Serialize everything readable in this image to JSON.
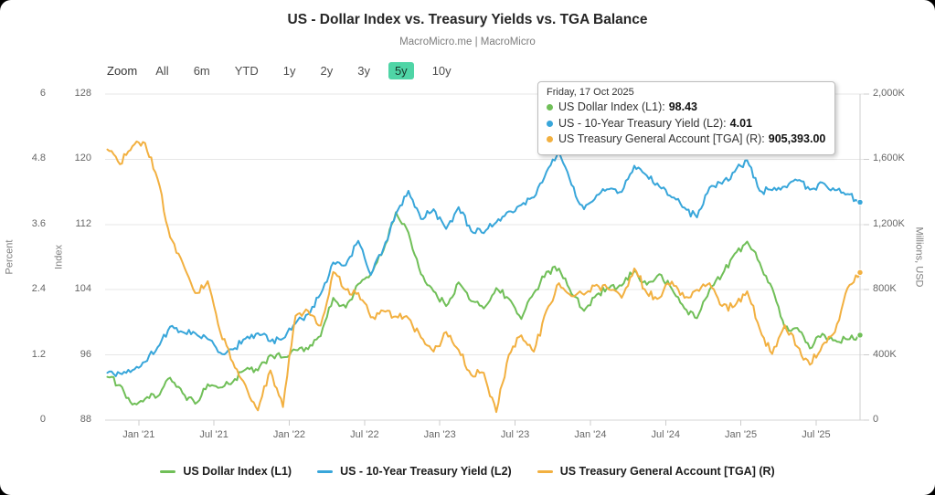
{
  "header": {
    "title": "US - Dollar Index vs. Treasury Yields vs. TGA Balance",
    "subtitle": "MacroMicro.me | MacroMicro"
  },
  "toolbar": {
    "label": "Zoom",
    "buttons": [
      "All",
      "6m",
      "YTD",
      "1y",
      "2y",
      "3y",
      "5y",
      "10y"
    ],
    "active": "5y",
    "active_bg": "#4fd5a6"
  },
  "tooltip": {
    "date": "Friday, 17 Oct 2025",
    "rows": [
      {
        "label": "US Dollar Index (L1):",
        "value": "98.43",
        "color": "#70bf58"
      },
      {
        "label": "US - 10-Year Treasury Yield (L2):",
        "value": "4.01",
        "color": "#38a6da"
      },
      {
        "label": "US Treasury General Account [TGA] (R):",
        "value": "905,393.00",
        "color": "#f2b040"
      }
    ]
  },
  "legend": [
    {
      "label": "US Dollar Index (L1)",
      "color": "#70bf58"
    },
    {
      "label": "US - 10-Year Treasury Yield (L2)",
      "color": "#38a6da"
    },
    {
      "label": "US Treasury General Account [TGA] (R)",
      "color": "#f2b040"
    }
  ],
  "chart_data": {
    "type": "line",
    "title": "US - Dollar Index vs. Treasury Yields vs. TGA Balance",
    "x_start": "Oct 2020",
    "x_end": "Oct 2025",
    "x_frequency": "monthly",
    "x_labels": [
      "Jan '21",
      "Jul '21",
      "Jan '22",
      "Jul '22",
      "Jan '23",
      "Jul '23",
      "Jan '24",
      "Jul '24",
      "Jan '25",
      "Jul '25"
    ],
    "grid": "horizontal",
    "legend_position": "bottom",
    "axes": {
      "percent": {
        "title": "Percent",
        "side": "left",
        "ticks": [
          "0",
          "1.2",
          "2.4",
          "3.6",
          "4.8",
          "6"
        ],
        "range": [
          0,
          6
        ]
      },
      "index": {
        "title": "Index",
        "side": "left",
        "ticks": [
          "88",
          "96",
          "104",
          "112",
          "120",
          "128"
        ],
        "range": [
          88,
          128
        ]
      },
      "right": {
        "title": "Millions, USD",
        "side": "right",
        "ticks": [
          "0",
          "400K",
          "800K",
          "1,200K",
          "1,600K",
          "2,000K"
        ],
        "range": [
          0,
          2000
        ]
      }
    },
    "series": [
      {
        "name": "US Dollar Index (L1)",
        "axis": "index",
        "color": "#70bf58",
        "last_value": 98.43,
        "values": [
          93.3,
          92.3,
          89.9,
          90.6,
          90.9,
          93.2,
          91.3,
          90.0,
          92.4,
          92.0,
          92.7,
          94.2,
          94.1,
          96.0,
          95.7,
          96.6,
          96.7,
          98.3,
          103.0,
          101.8,
          104.7,
          105.9,
          108.8,
          113.5,
          111.0,
          105.9,
          103.8,
          102.0,
          104.9,
          102.6,
          101.7,
          104.2,
          102.9,
          100.4,
          103.6,
          106.2,
          106.6,
          103.5,
          101.4,
          103.4,
          104.2,
          104.5,
          106.3,
          104.6,
          105.9,
          104.1,
          101.7,
          100.5,
          104.0,
          105.8,
          108.4,
          109.9,
          107.3,
          104.2,
          99.3,
          99.3,
          96.8,
          98.6,
          97.8,
          97.9,
          98.43
        ]
      },
      {
        "name": "US - 10-Year Treasury Yield (L2)",
        "axis": "percent",
        "color": "#38a6da",
        "last_value": 4.01,
        "values": [
          0.87,
          0.86,
          0.92,
          1.07,
          1.34,
          1.72,
          1.62,
          1.6,
          1.49,
          1.24,
          1.3,
          1.5,
          1.6,
          1.45,
          1.5,
          1.78,
          1.95,
          2.32,
          2.9,
          2.85,
          3.3,
          2.67,
          3.15,
          3.8,
          4.22,
          3.7,
          3.88,
          3.52,
          3.92,
          3.48,
          3.44,
          3.64,
          3.84,
          3.96,
          4.1,
          4.57,
          4.93,
          4.33,
          3.88,
          4.14,
          4.25,
          4.2,
          4.68,
          4.5,
          4.3,
          4.1,
          3.91,
          3.73,
          4.28,
          4.35,
          4.57,
          4.78,
          4.22,
          4.23,
          4.3,
          4.41,
          4.24,
          4.37,
          4.23,
          4.16,
          4.01
        ]
      },
      {
        "name": "US Treasury General Account [TGA] (R)",
        "axis": "right",
        "color": "#f2b040",
        "last_value": 905393.0,
        "values": [
          1660,
          1570,
          1680,
          1700,
          1480,
          1122,
          966,
          779,
          852,
          540,
          355,
          215,
          60,
          305,
          80,
          640,
          670,
          580,
          908,
          800,
          780,
          630,
          670,
          636,
          625,
          507,
          420,
          540,
          430,
          278,
          290,
          50,
          400,
          520,
          420,
          672,
          840,
          760,
          770,
          830,
          800,
          750,
          930,
          780,
          750,
          850,
          750,
          800,
          840,
          700,
          700,
          790,
          560,
          406,
          583,
          450,
          340,
          460,
          540,
          810,
          905.393
        ]
      }
    ]
  },
  "colors": {
    "grid": "#e7e7e7",
    "axis_line": "#d6d6d6",
    "tick_mark": "#cccccc",
    "crosshair": "#cfcfcf"
  }
}
